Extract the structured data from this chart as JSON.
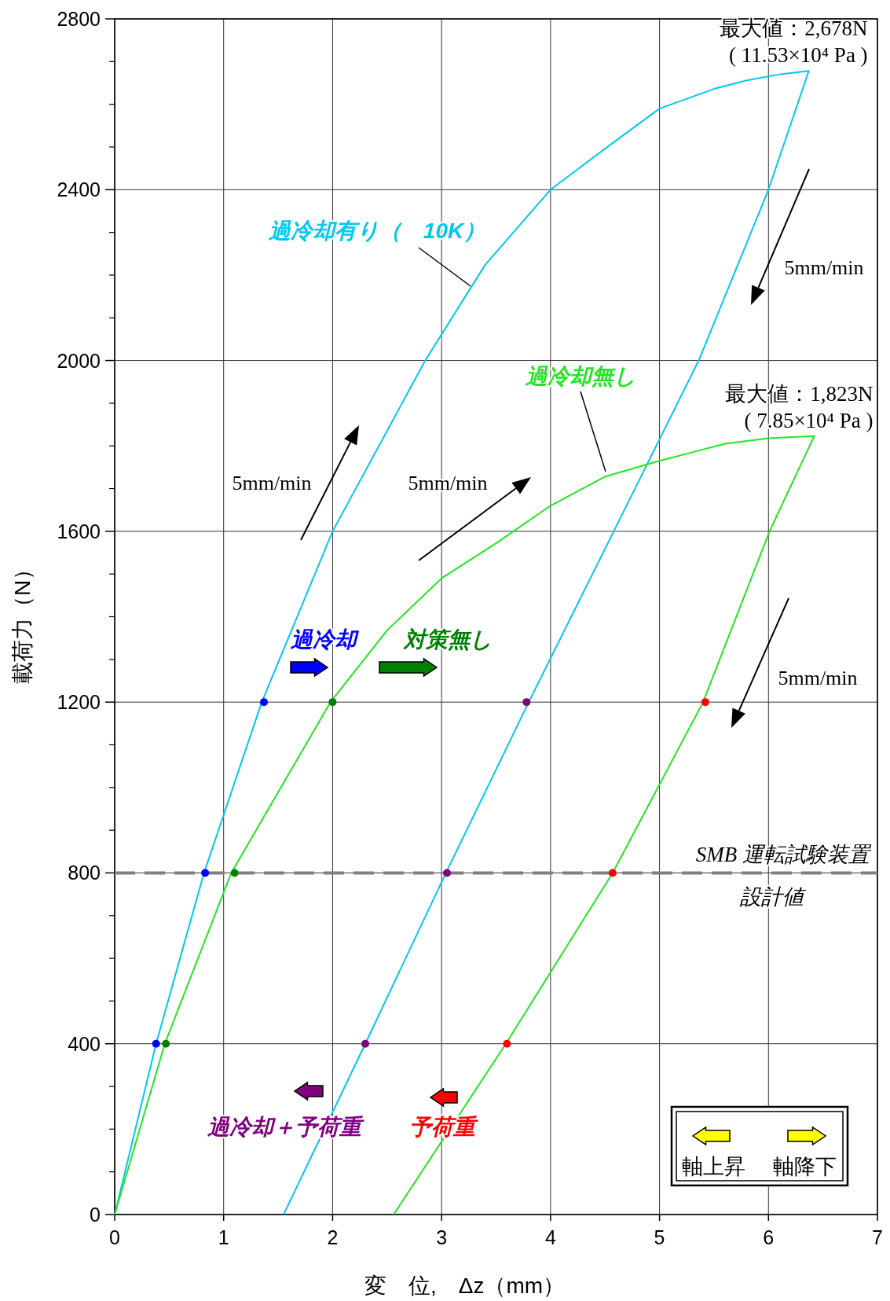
{
  "chart_data": {
    "type": "line",
    "xlabel": "変　位,　Δz（mm）",
    "ylabel": "載荷力（N）",
    "legend": "left",
    "xlim": [
      0,
      7
    ],
    "xticks": [
      0,
      1,
      2,
      3,
      4,
      5,
      6,
      7
    ],
    "ylim": [
      0,
      2800
    ],
    "yticks": [
      0,
      400,
      800,
      1200,
      1600,
      2000,
      2400,
      2800
    ],
    "grid": true,
    "series": [
      {
        "name": "過冷却有り（　10K）",
        "color": "#00c8f0",
        "x": [
          0,
          0.38,
          0.82,
          1.35,
          2.0,
          2.85,
          3.4,
          4.0,
          4.5,
          5.0,
          5.5,
          5.8,
          6.1,
          6.37,
          6.0,
          5.36,
          4.58,
          3.8,
          3.04,
          2.3,
          1.55
        ],
        "values": [
          0,
          400,
          800,
          1200,
          1600,
          2000,
          2224,
          2400,
          2496,
          2590,
          2636,
          2656,
          2670,
          2678,
          2400,
          2000,
          1600,
          1200,
          800,
          400,
          0
        ]
      },
      {
        "name": "過冷却無し",
        "color": "#22e622",
        "x": [
          0,
          0.46,
          1.07,
          1.98,
          2.5,
          3.0,
          3.5,
          4.0,
          4.5,
          5.0,
          5.3,
          5.6,
          6.0,
          6.42,
          6.01,
          5.4,
          4.57,
          3.59,
          2.56
        ],
        "values": [
          0,
          400,
          800,
          1200,
          1368,
          1490,
          1572,
          1660,
          1728,
          1765,
          1785,
          1805,
          1818,
          1823,
          1600,
          1200,
          800,
          400,
          0
        ]
      },
      {
        "name": "過冷却",
        "type": "scatter",
        "color": "#0000ff",
        "x": [
          0.38,
          0.83,
          1.37
        ],
        "values": [
          400,
          800,
          1200
        ]
      },
      {
        "name": "対策無し",
        "type": "scatter",
        "color": "#008000",
        "x": [
          0.47,
          1.1,
          2.0
        ],
        "values": [
          400,
          800,
          1200
        ]
      },
      {
        "name": "過冷却＋予荷重",
        "type": "scatter",
        "color": "#800080",
        "x": [
          2.3,
          3.05,
          3.78
        ],
        "values": [
          400,
          800,
          1200
        ]
      },
      {
        "name": "予荷重",
        "type": "scatter",
        "color": "#ff0000",
        "x": [
          3.6,
          4.57,
          5.42
        ],
        "values": [
          400,
          800,
          1200
        ]
      }
    ],
    "ref_lines": [
      {
        "axis": "y",
        "value": 800,
        "label": "SMB 運転試験装置設計値",
        "color": "#808080",
        "line_style": "dashed"
      }
    ],
    "annotations": [
      {
        "text": "最大値：2,678N\n( 11.53×10⁴ Pa )",
        "x": 6.37,
        "y": 2678
      },
      {
        "text": "最大値：1,823N\n( 7.85×10⁴ Pa )",
        "x": 6.42,
        "y": 1823
      },
      "5mm/min",
      "5mm/min",
      "5mm/min",
      "5mm/min",
      "軸上昇",
      "軸降下"
    ]
  }
}
